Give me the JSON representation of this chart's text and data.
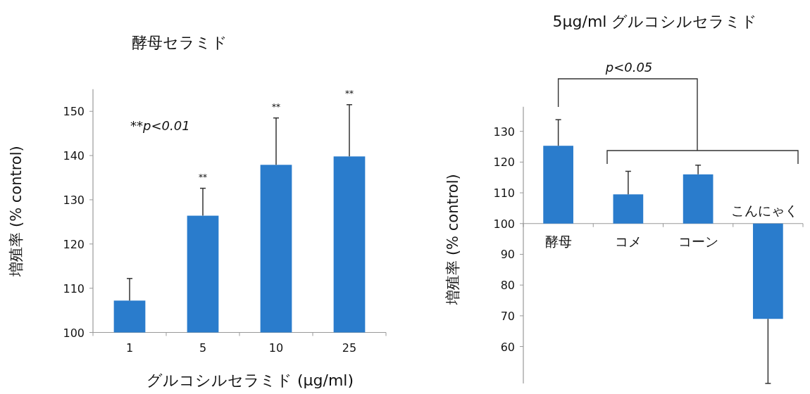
{
  "chart_data": [
    {
      "type": "bar",
      "title": "酵母セラミド",
      "xlabel": "グルコシルセラミド (μg/ml)",
      "ylabel": "増殖率 (% control)",
      "categories": [
        "1",
        "5",
        "10",
        "25"
      ],
      "values": [
        107.2,
        126.4,
        137.9,
        139.8
      ],
      "color": "#2a7ccc",
      "errors": [
        [
          107.2,
          112.2
        ],
        [
          126.4,
          132.6
        ],
        [
          137.9,
          148.5
        ],
        [
          139.8,
          151.5
        ]
      ],
      "ylim": [
        100,
        155
      ],
      "yticks": [
        100,
        110,
        120,
        130,
        140,
        150
      ],
      "annotations": [
        "**p<0.01",
        "**",
        "**",
        "**"
      ]
    },
    {
      "type": "bar",
      "title": "5μg/ml グルコシルセラミド",
      "ylabel": "増殖率 (% control)",
      "categories": [
        "酵母",
        "コメ",
        "コーン",
        "こんにゃく"
      ],
      "base": [
        100,
        100,
        100,
        100
      ],
      "values": [
        25.3,
        9.5,
        16,
        -31
      ],
      "color": "#2a7ccc",
      "errors": [
        [
          125.3,
          133.8
        ],
        [
          109.5,
          117
        ],
        [
          116,
          119
        ],
        [
          48,
          69
        ]
      ],
      "ylim": [
        48,
        138
      ],
      "yticks": [
        60,
        70,
        80,
        90,
        100,
        110,
        120,
        130
      ],
      "annotations": [
        "p<0.05"
      ]
    }
  ]
}
